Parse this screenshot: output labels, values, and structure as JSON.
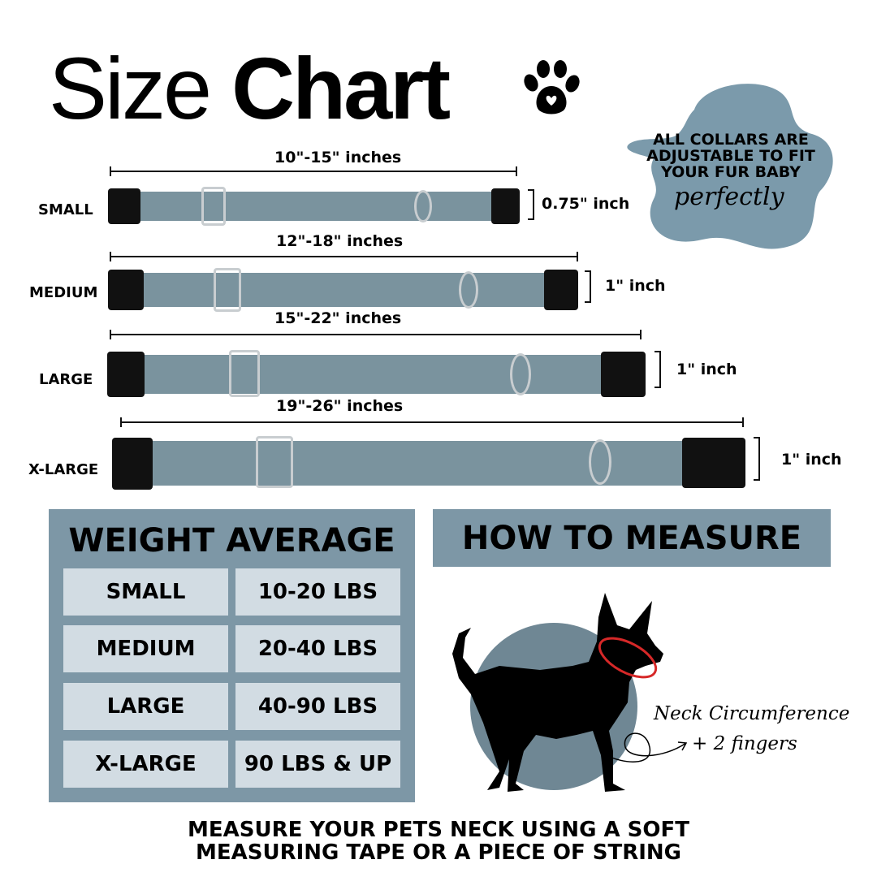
{
  "title": {
    "light": "Size",
    "bold": "Chart"
  },
  "badge": {
    "text_lines": [
      "ALL COLLARS ARE",
      "ADJUSTABLE TO FIT",
      "YOUR FUR BABY"
    ],
    "script": "perfectly",
    "color": "#7b9aab"
  },
  "collars": [
    {
      "label": "SMALL",
      "length": "10\"-15\" inches",
      "width": "0.75\" inch"
    },
    {
      "label": "MEDIUM",
      "length": "12\"-18\" inches",
      "width": "1\" inch"
    },
    {
      "label": "LARGE",
      "length": "15\"-22\" inches",
      "width": "1\" inch"
    },
    {
      "label": "X-LARGE",
      "length": "19\"-26\" inches",
      "width": "1\" inch"
    }
  ],
  "weight": {
    "title": "WEIGHT AVERAGE",
    "rows": [
      {
        "size": "SMALL",
        "weight": "10-20 LBS"
      },
      {
        "size": "MEDIUM",
        "weight": "20-40 LBS"
      },
      {
        "size": "LARGE",
        "weight": "40-90 LBS"
      },
      {
        "size": "X-LARGE",
        "weight": "90 LBS & UP"
      }
    ]
  },
  "measure": {
    "title": "HOW TO MEASURE",
    "note_line1": "Neck Circumference",
    "note_line2": "+ 2 fingers"
  },
  "footer": {
    "line1": "MEASURE YOUR PETS NECK USING A SOFT",
    "line2": "MEASURING TAPE OR A PIECE OF STRING"
  },
  "colors": {
    "accent": "#7d97a6",
    "cell": "#d2dce3",
    "collar": "#7a939e",
    "neck_loop": "#d62828"
  }
}
